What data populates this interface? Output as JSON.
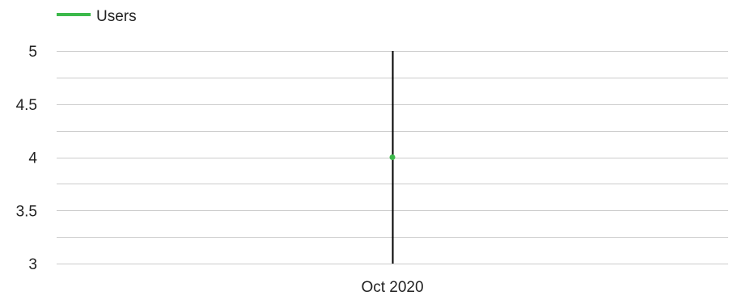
{
  "chart_data": {
    "type": "line",
    "title": "",
    "xlabel": "",
    "ylabel": "",
    "categories": [
      "Oct 2020"
    ],
    "series": [
      {
        "name": "Users",
        "color": "#3cb94b",
        "values": [
          4
        ]
      }
    ],
    "ylim": [
      3,
      5
    ],
    "yticks": [
      "3",
      "3.5",
      "4",
      "4.5",
      "5"
    ],
    "y_minor_step": 0.25,
    "grid": true,
    "gridline_color": "#cccccc",
    "crosshair_color": "#000000",
    "legend_position": "top-left"
  }
}
